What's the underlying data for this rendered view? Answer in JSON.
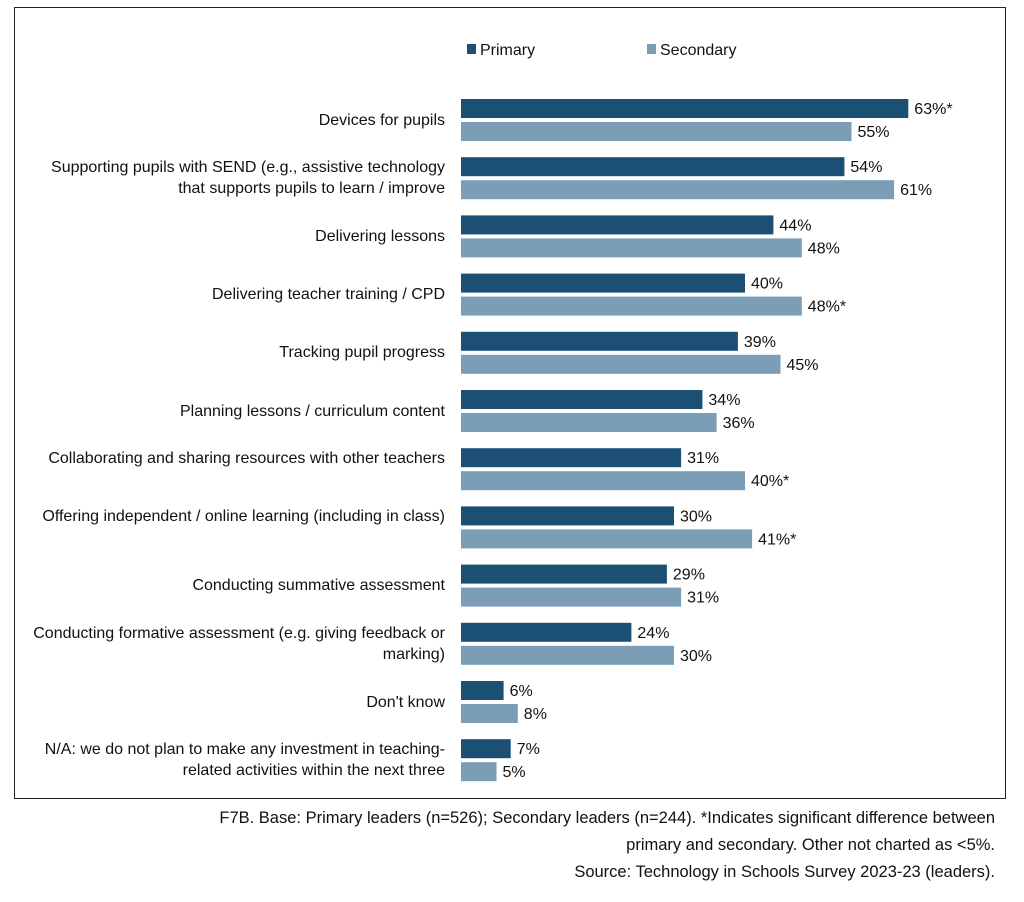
{
  "chart_data": {
    "type": "bar",
    "orientation": "horizontal",
    "categories": [
      "Devices for pupils",
      "Supporting pupils with SEND (e.g., assistive technology that supports pupils to learn / improve",
      "Delivering lessons",
      "Delivering teacher training / CPD",
      "Tracking pupil progress",
      "Planning lessons / curriculum content",
      "Collaborating and sharing resources with other teachers",
      "Offering independent / online learning (including in class)",
      "Conducting summative assessment",
      "Conducting formative assessment (e.g. giving feedback or marking)",
      "Don't know",
      "N/A: we do not plan to make any investment in teaching-related activities within the next three"
    ],
    "series": [
      {
        "name": "Primary",
        "color": "#1b4f74",
        "values": [
          63,
          54,
          44,
          40,
          39,
          34,
          31,
          30,
          29,
          24,
          6,
          7
        ],
        "labels": [
          "63%*",
          "54%",
          "44%",
          "40%",
          "39%",
          "34%",
          "31%",
          "30%",
          "29%",
          "24%",
          "6%",
          "7%"
        ]
      },
      {
        "name": "Secondary",
        "color": "#7b9db6",
        "values": [
          55,
          61,
          48,
          48,
          45,
          36,
          40,
          41,
          31,
          30,
          8,
          5
        ],
        "labels": [
          "55%",
          "61%",
          "48%",
          "48%*",
          "45%",
          "36%",
          "40%*",
          "41%*",
          "31%",
          "30%",
          "8%",
          "5%"
        ]
      }
    ],
    "unit": "%",
    "xlim": [
      0,
      70
    ],
    "grid": false,
    "legend": "top"
  },
  "footer": {
    "line1": "F7B. Base: Primary leaders (n=526); Secondary leaders (n=244). *Indicates significant difference between",
    "line2": "primary and secondary. Other not charted as <5%.",
    "line3": "Source: Technology in Schools Survey 2023-23 (leaders)."
  }
}
